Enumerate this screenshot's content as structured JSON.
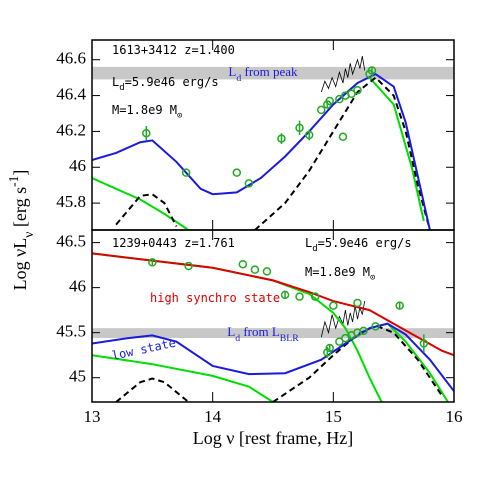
{
  "chart_data": [
    {
      "type": "scatter",
      "xlim": [
        13,
        16
      ],
      "xticks": [
        13,
        14,
        15,
        16
      ],
      "ylim": [
        45.65,
        46.71
      ],
      "yticks": [
        45.8,
        46,
        46.2,
        46.4,
        46.6
      ],
      "ylabel": [
        {
          "text": "Log νL"
        },
        {
          "text": "ν",
          "shift": "sub"
        },
        {
          "text": "  [erg s"
        },
        {
          "text": "-1",
          "shift": "super"
        },
        {
          "text": "]"
        }
      ],
      "band": {
        "range": [
          46.49,
          46.56
        ],
        "color": "#c8c8c8",
        "label": [
          {
            "text": "L"
          },
          {
            "text": "d",
            "shift": "sub"
          },
          {
            "text": " from peak"
          }
        ],
        "label_color": "#1a1adf"
      },
      "annotations": [
        {
          "parts": [
            {
              "text": "1613+3412  z=1.400"
            }
          ],
          "color": "#000000"
        },
        {
          "parts": [
            {
              "text": "L"
            },
            {
              "text": "d",
              "shift": "sub"
            },
            {
              "text": "=5.9e46 erg/s"
            }
          ],
          "color": "#000000"
        },
        {
          "parts": [
            {
              "text": "M=1.8e9 M"
            },
            {
              "text": "⊙",
              "shift": "sub"
            }
          ],
          "color": "#000000"
        }
      ],
      "points": {
        "color": "#22aa22",
        "x": [
          13.45,
          13.78,
          14.2,
          14.3,
          14.57,
          14.72,
          14.8,
          14.9,
          14.95,
          14.97,
          15.05,
          15.08,
          15.1,
          15.15,
          15.2,
          15.3,
          15.32
        ],
        "values": [
          46.19,
          45.97,
          45.97,
          45.91,
          46.16,
          46.22,
          46.18,
          46.32,
          46.35,
          46.37,
          46.38,
          46.17,
          46.4,
          46.41,
          46.43,
          46.52,
          46.54
        ],
        "errors": [
          0.04,
          null,
          null,
          null,
          0.03,
          0.04,
          0.03,
          null,
          0.02,
          null,
          null,
          null,
          null,
          null,
          null,
          null,
          0.02
        ]
      },
      "series": [
        {
          "color": "#000000",
          "style": "thin",
          "x": [
            14.9,
            14.93,
            14.96,
            14.99,
            15.02,
            15.05,
            15.08,
            15.1,
            15.12,
            15.14,
            15.16,
            15.18,
            15.2,
            15.22,
            15.24,
            15.26
          ],
          "values": [
            46.42,
            46.48,
            46.44,
            46.5,
            46.45,
            46.53,
            46.47,
            46.55,
            46.5,
            46.58,
            46.52,
            46.56,
            46.6,
            46.55,
            46.62,
            46.54
          ]
        },
        {
          "color": "#00dd00",
          "style": "solid",
          "x": [
            13,
            13.2,
            13.4,
            13.6,
            13.8
          ],
          "values": [
            45.94,
            45.88,
            45.82,
            45.74,
            45.65
          ]
        },
        {
          "color": "#00dd00",
          "style": "solid",
          "x": [
            15.3,
            15.5,
            15.65,
            15.75
          ],
          "values": [
            46.5,
            46.35,
            46.0,
            45.7
          ]
        },
        {
          "color": "#000000",
          "style": "dashed",
          "x": [
            13.2,
            13.4,
            13.5,
            13.6,
            13.7
          ],
          "values": [
            45.68,
            45.84,
            45.85,
            45.8,
            45.67
          ]
        },
        {
          "color": "#000000",
          "style": "dashed",
          "x": [
            14.35,
            14.6,
            14.8,
            15.0,
            15.2,
            15.35,
            15.5,
            15.6,
            15.7,
            15.8
          ],
          "values": [
            45.65,
            45.8,
            45.98,
            46.2,
            46.42,
            46.5,
            46.4,
            46.2,
            45.9,
            45.65
          ]
        },
        {
          "color": "#1a1adf",
          "style": "solid",
          "x": [
            13,
            13.2,
            13.4,
            13.5,
            13.7,
            13.9,
            14.0,
            14.2,
            14.4,
            14.6,
            14.8,
            15.0,
            15.2,
            15.35,
            15.5,
            15.6,
            15.7,
            15.8
          ],
          "values": [
            46.04,
            46.08,
            46.14,
            46.15,
            46.03,
            45.88,
            45.85,
            45.86,
            45.94,
            46.06,
            46.2,
            46.35,
            46.47,
            46.52,
            46.45,
            46.25,
            45.95,
            45.65
          ]
        }
      ]
    },
    {
      "type": "scatter",
      "xlim": [
        13,
        16
      ],
      "xticks": [
        13,
        14,
        15,
        16
      ],
      "ylim": [
        44.73,
        46.64
      ],
      "yticks": [
        45,
        45.5,
        46,
        46.5
      ],
      "xlabel": [
        {
          "text": "Log ν [rest frame, Hz]"
        }
      ],
      "band": {
        "range": [
          45.44,
          45.55
        ],
        "color": "#c8c8c8",
        "label": [
          {
            "text": "L"
          },
          {
            "text": "d",
            "shift": "sub"
          },
          {
            "text": " from L"
          },
          {
            "text": "BLR",
            "shift": "sub"
          }
        ],
        "label_color": "#1a1adf"
      },
      "annotations": [
        {
          "parts": [
            {
              "text": "1239+0443  z=1.761"
            }
          ],
          "color": "#000000"
        },
        {
          "parts": [
            {
              "text": "L"
            },
            {
              "text": "d",
              "shift": "sub"
            },
            {
              "text": "=5.9e46 erg/s"
            }
          ],
          "color": "#000000"
        },
        {
          "parts": [
            {
              "text": "M=1.8e9 M"
            },
            {
              "text": "⊙",
              "shift": "sub"
            }
          ],
          "color": "#000000"
        },
        {
          "parts": [
            {
              "text": "high synchro state"
            }
          ],
          "color": "#dd0000"
        },
        {
          "parts": [
            {
              "text": "low state"
            }
          ],
          "color": "#1a1adf"
        }
      ],
      "points": {
        "color": "#22aa22",
        "x": [
          13.5,
          13.8,
          14.25,
          14.35,
          14.45,
          14.6,
          14.72,
          14.85,
          15.0,
          15.2,
          14.95,
          14.97,
          15.05,
          15.1,
          15.15,
          15.2,
          15.25,
          15.35,
          15.55,
          15.75
        ],
        "values": [
          46.28,
          46.24,
          46.26,
          46.2,
          46.18,
          45.92,
          45.9,
          45.9,
          45.8,
          45.83,
          45.28,
          45.33,
          45.4,
          45.44,
          45.47,
          45.5,
          45.52,
          45.57,
          45.8,
          45.38
        ],
        "errors": [
          0.03,
          null,
          null,
          null,
          null,
          0.03,
          null,
          null,
          null,
          null,
          0.06,
          0.04,
          null,
          null,
          null,
          null,
          null,
          null,
          0.04,
          0.1
        ]
      },
      "series": [
        {
          "color": "#000000",
          "style": "thin",
          "x": [
            14.9,
            14.93,
            14.96,
            14.99,
            15.02,
            15.05,
            15.08,
            15.1,
            15.12,
            15.14,
            15.16,
            15.18,
            15.2,
            15.22,
            15.24,
            15.26
          ],
          "values": [
            45.45,
            45.62,
            45.5,
            45.7,
            45.55,
            45.68,
            45.6,
            45.75,
            45.58,
            45.72,
            45.62,
            45.8,
            45.65,
            45.78,
            45.7,
            45.85
          ]
        },
        {
          "color": "#00dd00",
          "style": "solid",
          "x": [
            13,
            13.5,
            14,
            14.5,
            14.8,
            15.0,
            15.1,
            15.2,
            15.3,
            15.4
          ],
          "values": [
            46.38,
            46.3,
            46.22,
            46.08,
            45.93,
            45.72,
            45.55,
            45.3,
            45.0,
            44.73
          ]
        },
        {
          "color": "#00dd00",
          "style": "solid",
          "x": [
            13,
            13.5,
            14.0,
            14.3,
            14.5
          ],
          "values": [
            45.25,
            45.15,
            45.02,
            44.9,
            44.73
          ]
        },
        {
          "color": "#00dd00",
          "style": "solid",
          "x": [
            15.3,
            15.45,
            15.6,
            15.8,
            15.95
          ],
          "values": [
            45.55,
            45.6,
            45.4,
            45.05,
            44.73
          ]
        },
        {
          "color": "#000000",
          "style": "dashed",
          "x": [
            13.2,
            13.4,
            13.5,
            13.6,
            13.8
          ],
          "values": [
            44.73,
            44.95,
            44.99,
            44.95,
            44.73
          ]
        },
        {
          "color": "#000000",
          "style": "dashed",
          "x": [
            14.5,
            14.8,
            15.0,
            15.2,
            15.35,
            15.5,
            15.7,
            15.9
          ],
          "values": [
            44.73,
            45.0,
            45.25,
            45.48,
            45.58,
            45.5,
            45.2,
            44.8
          ]
        },
        {
          "color": "#dd0000",
          "style": "solid",
          "x": [
            13,
            13.5,
            14,
            14.5,
            14.8,
            15.0,
            15.3,
            15.5,
            15.7,
            15.9,
            16
          ],
          "values": [
            46.38,
            46.3,
            46.22,
            46.08,
            45.95,
            45.85,
            45.75,
            45.6,
            45.45,
            45.3,
            45.25
          ]
        },
        {
          "color": "#1a1adf",
          "style": "solid",
          "x": [
            13,
            13.3,
            13.5,
            13.7,
            14.0,
            14.3,
            14.6,
            14.9,
            15.1,
            15.3,
            15.45,
            15.6,
            15.8,
            16
          ],
          "values": [
            45.38,
            45.44,
            45.47,
            45.4,
            45.13,
            45.04,
            45.05,
            45.2,
            45.38,
            45.55,
            45.6,
            45.48,
            45.2,
            44.85
          ]
        }
      ]
    }
  ]
}
